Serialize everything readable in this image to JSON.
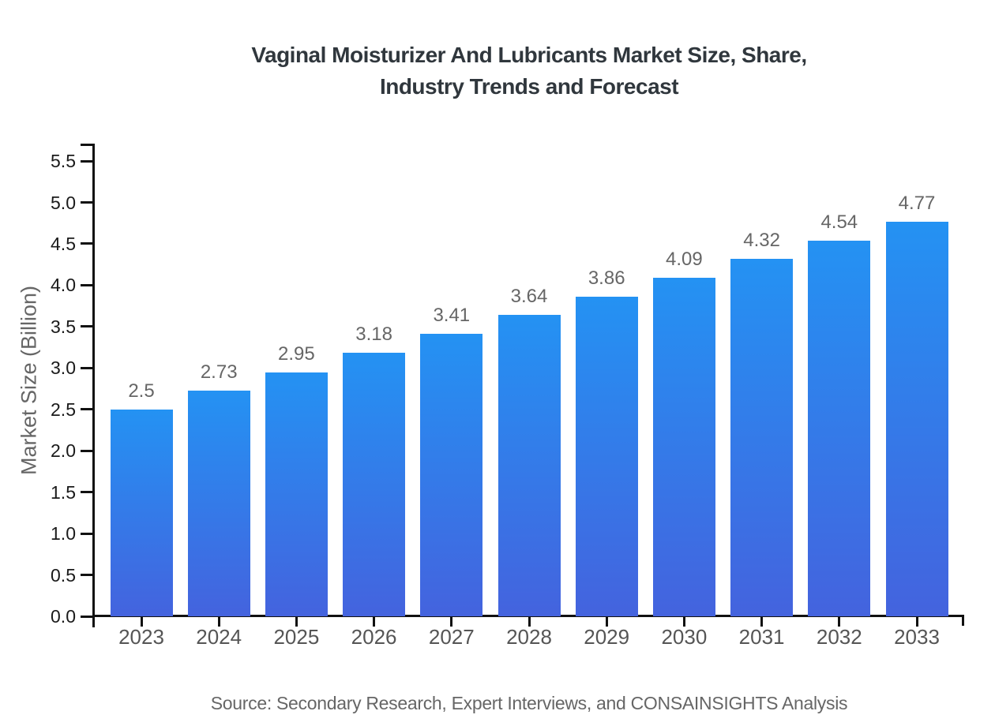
{
  "chart_data": {
    "type": "bar",
    "title": "Vaginal Moisturizer And Lubricants Market Size, Share, Industry Trends and Forecast",
    "title_line1": "Vaginal Moisturizer And Lubricants Market Size, Share,",
    "title_line2": "Industry Trends and Forecast",
    "xlabel": "",
    "ylabel": "Market Size (Billion)",
    "categories": [
      "2023",
      "2024",
      "2025",
      "2026",
      "2027",
      "2028",
      "2029",
      "2030",
      "2031",
      "2032",
      "2033"
    ],
    "values": [
      2.5,
      2.73,
      2.95,
      3.18,
      3.41,
      3.64,
      3.86,
      4.09,
      4.32,
      4.54,
      4.77
    ],
    "value_labels": [
      "2.5",
      "2.73",
      "2.95",
      "3.18",
      "3.41",
      "3.64",
      "3.86",
      "4.09",
      "4.32",
      "4.54",
      "4.77"
    ],
    "yticks": [
      "0.0",
      "0.5",
      "1.0",
      "1.5",
      "2.0",
      "2.5",
      "3.0",
      "3.5",
      "4.0",
      "4.5",
      "5.0",
      "5.5"
    ],
    "ytick_values": [
      0,
      0.5,
      1,
      1.5,
      2,
      2.5,
      3,
      3.5,
      4,
      4.5,
      5,
      5.5
    ],
    "ylim": [
      0,
      5.71
    ],
    "grid": false,
    "legend": "none",
    "source": "Source: Secondary Research, Expert Interviews, and CONSAINSIGHTS Analysis",
    "colors": {
      "bar_gradient_top": "#2492F3",
      "bar_gradient_bottom": "#4463DE",
      "title": "#30373D",
      "y_tick_label": "#1A1A1A",
      "x_tick_label": "#555555",
      "value_label": "#666666",
      "axis_label": "#666666",
      "axis_line": "#111111",
      "background": "#FFFFFF"
    }
  }
}
